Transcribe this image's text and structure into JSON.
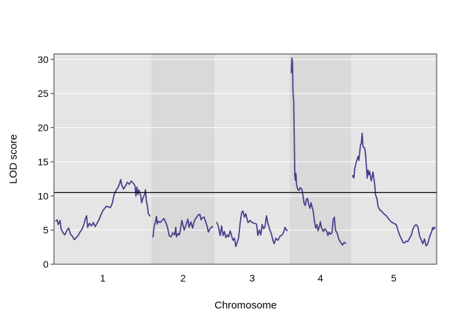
{
  "chart_data": {
    "type": "line",
    "xlabel": "Chromosome",
    "ylabel": "LOD score",
    "ylim": [
      0,
      30.8
    ],
    "yticks": [
      0,
      5,
      10,
      15,
      20,
      25,
      30
    ],
    "grid": true,
    "threshold": 10.5,
    "colors": {
      "line": "#483D8B",
      "panel_light": "#E5E5E5",
      "panel_dark": "#D9D9D9",
      "grid": "#FFFFFF",
      "threshold": "#000000"
    },
    "chromosomes": [
      {
        "label": "1",
        "series": [
          {
            "x": 0,
            "y": 6.3
          },
          {
            "x": 2,
            "y": 6.5
          },
          {
            "x": 3,
            "y": 5.8
          },
          {
            "x": 5,
            "y": 6.4
          },
          {
            "x": 6,
            "y": 5.2
          },
          {
            "x": 8,
            "y": 4.6
          },
          {
            "x": 10,
            "y": 4.3
          },
          {
            "x": 12,
            "y": 4.9
          },
          {
            "x": 14,
            "y": 5.3
          },
          {
            "x": 16,
            "y": 4.4
          },
          {
            "x": 18,
            "y": 4.1
          },
          {
            "x": 20,
            "y": 3.6
          },
          {
            "x": 22,
            "y": 3.9
          },
          {
            "x": 24,
            "y": 4.2
          },
          {
            "x": 26,
            "y": 4.7
          },
          {
            "x": 28,
            "y": 5.1
          },
          {
            "x": 30,
            "y": 5.8
          },
          {
            "x": 32,
            "y": 6.8
          },
          {
            "x": 33,
            "y": 7.1
          },
          {
            "x": 34,
            "y": 5.4
          },
          {
            "x": 36,
            "y": 6.0
          },
          {
            "x": 38,
            "y": 5.6
          },
          {
            "x": 40,
            "y": 6.1
          },
          {
            "x": 42,
            "y": 5.5
          },
          {
            "x": 44,
            "y": 6.0
          },
          {
            "x": 46,
            "y": 6.5
          },
          {
            "x": 48,
            "y": 7.2
          },
          {
            "x": 50,
            "y": 7.8
          },
          {
            "x": 52,
            "y": 8.2
          },
          {
            "x": 54,
            "y": 8.5
          },
          {
            "x": 56,
            "y": 8.4
          },
          {
            "x": 58,
            "y": 8.3
          },
          {
            "x": 60,
            "y": 8.9
          },
          {
            "x": 62,
            "y": 10.2
          },
          {
            "x": 64,
            "y": 10.8
          },
          {
            "x": 66,
            "y": 11.2
          },
          {
            "x": 68,
            "y": 11.9
          },
          {
            "x": 69,
            "y": 12.4
          },
          {
            "x": 70,
            "y": 11.6
          },
          {
            "x": 72,
            "y": 11.0
          },
          {
            "x": 74,
            "y": 11.5
          },
          {
            "x": 76,
            "y": 12.0
          },
          {
            "x": 78,
            "y": 11.7
          },
          {
            "x": 80,
            "y": 12.2
          },
          {
            "x": 82,
            "y": 11.9
          },
          {
            "x": 84,
            "y": 11.5
          },
          {
            "x": 85,
            "y": 10.0
          },
          {
            "x": 86,
            "y": 11.3
          },
          {
            "x": 87,
            "y": 10.2
          },
          {
            "x": 88,
            "y": 10.9
          },
          {
            "x": 90,
            "y": 10.1
          },
          {
            "x": 91,
            "y": 9.0
          },
          {
            "x": 92,
            "y": 9.5
          },
          {
            "x": 94,
            "y": 10.2
          },
          {
            "x": 95,
            "y": 10.9
          },
          {
            "x": 96,
            "y": 9.3
          },
          {
            "x": 97,
            "y": 8.6
          },
          {
            "x": 98,
            "y": 7.4
          },
          {
            "x": 100,
            "y": 7.0
          }
        ]
      },
      {
        "label": "2",
        "series": [
          {
            "x": 0,
            "y": 3.9
          },
          {
            "x": 2,
            "y": 5.5
          },
          {
            "x": 4,
            "y": 6.2
          },
          {
            "x": 6,
            "y": 7.0
          },
          {
            "x": 7,
            "y": 5.9
          },
          {
            "x": 9,
            "y": 6.3
          },
          {
            "x": 12,
            "y": 6.1
          },
          {
            "x": 15,
            "y": 6.4
          },
          {
            "x": 18,
            "y": 6.7
          },
          {
            "x": 21,
            "y": 6.2
          },
          {
            "x": 24,
            "y": 5.5
          },
          {
            "x": 27,
            "y": 4.2
          },
          {
            "x": 30,
            "y": 4.0
          },
          {
            "x": 33,
            "y": 4.6
          },
          {
            "x": 36,
            "y": 4.3
          },
          {
            "x": 38,
            "y": 5.4
          },
          {
            "x": 39,
            "y": 4.0
          },
          {
            "x": 42,
            "y": 4.5
          },
          {
            "x": 44,
            "y": 4.3
          },
          {
            "x": 46,
            "y": 5.2
          },
          {
            "x": 48,
            "y": 6.4
          },
          {
            "x": 50,
            "y": 5.7
          },
          {
            "x": 52,
            "y": 5.0
          },
          {
            "x": 55,
            "y": 5.8
          },
          {
            "x": 58,
            "y": 6.6
          },
          {
            "x": 60,
            "y": 5.4
          },
          {
            "x": 63,
            "y": 6.2
          },
          {
            "x": 66,
            "y": 5.3
          },
          {
            "x": 69,
            "y": 6.4
          },
          {
            "x": 72,
            "y": 6.8
          },
          {
            "x": 75,
            "y": 7.2
          },
          {
            "x": 78,
            "y": 7.3
          },
          {
            "x": 80,
            "y": 6.5
          },
          {
            "x": 82,
            "y": 6.8
          },
          {
            "x": 85,
            "y": 6.9
          },
          {
            "x": 88,
            "y": 6.1
          },
          {
            "x": 90,
            "y": 5.6
          },
          {
            "x": 92,
            "y": 4.7
          },
          {
            "x": 95,
            "y": 5.2
          },
          {
            "x": 98,
            "y": 5.5
          },
          {
            "x": 100,
            "y": 5.4
          }
        ]
      },
      {
        "label": "3",
        "series": [
          {
            "x": 0,
            "y": 6.2
          },
          {
            "x": 2,
            "y": 5.7
          },
          {
            "x": 4,
            "y": 4.7
          },
          {
            "x": 5,
            "y": 4.2
          },
          {
            "x": 7,
            "y": 5.6
          },
          {
            "x": 9,
            "y": 4.2
          },
          {
            "x": 11,
            "y": 4.8
          },
          {
            "x": 13,
            "y": 3.9
          },
          {
            "x": 15,
            "y": 4.3
          },
          {
            "x": 17,
            "y": 4.0
          },
          {
            "x": 19,
            "y": 4.9
          },
          {
            "x": 21,
            "y": 4.2
          },
          {
            "x": 23,
            "y": 3.5
          },
          {
            "x": 25,
            "y": 3.8
          },
          {
            "x": 27,
            "y": 2.6
          },
          {
            "x": 29,
            "y": 3.2
          },
          {
            "x": 31,
            "y": 3.9
          },
          {
            "x": 33,
            "y": 6.0
          },
          {
            "x": 35,
            "y": 7.5
          },
          {
            "x": 37,
            "y": 7.8
          },
          {
            "x": 39,
            "y": 6.9
          },
          {
            "x": 41,
            "y": 7.4
          },
          {
            "x": 44,
            "y": 6.1
          },
          {
            "x": 47,
            "y": 6.4
          },
          {
            "x": 50,
            "y": 6.1
          },
          {
            "x": 53,
            "y": 6.0
          },
          {
            "x": 56,
            "y": 5.9
          },
          {
            "x": 58,
            "y": 4.2
          },
          {
            "x": 60,
            "y": 5.0
          },
          {
            "x": 62,
            "y": 4.3
          },
          {
            "x": 64,
            "y": 5.8
          },
          {
            "x": 66,
            "y": 5.2
          },
          {
            "x": 68,
            "y": 5.5
          },
          {
            "x": 70,
            "y": 7.1
          },
          {
            "x": 72,
            "y": 6.0
          },
          {
            "x": 75,
            "y": 4.9
          },
          {
            "x": 77,
            "y": 4.4
          },
          {
            "x": 79,
            "y": 3.5
          },
          {
            "x": 81,
            "y": 3.0
          },
          {
            "x": 83,
            "y": 3.8
          },
          {
            "x": 86,
            "y": 3.5
          },
          {
            "x": 89,
            "y": 4.1
          },
          {
            "x": 92,
            "y": 4.3
          },
          {
            "x": 94,
            "y": 4.7
          },
          {
            "x": 96,
            "y": 5.4
          },
          {
            "x": 98,
            "y": 5.0
          },
          {
            "x": 100,
            "y": 4.9
          }
        ]
      },
      {
        "label": "4",
        "series": [
          {
            "x": 0,
            "y": 28.0
          },
          {
            "x": 1,
            "y": 30.2
          },
          {
            "x": 2,
            "y": 29.5
          },
          {
            "x": 3,
            "y": 25.0
          },
          {
            "x": 4,
            "y": 24.0
          },
          {
            "x": 5,
            "y": 19.0
          },
          {
            "x": 6,
            "y": 13.0
          },
          {
            "x": 7,
            "y": 12.3
          },
          {
            "x": 8,
            "y": 13.3
          },
          {
            "x": 9,
            "y": 11.6
          },
          {
            "x": 11,
            "y": 11.0
          },
          {
            "x": 13,
            "y": 10.8
          },
          {
            "x": 15,
            "y": 11.2
          },
          {
            "x": 18,
            "y": 11.0
          },
          {
            "x": 20,
            "y": 10.1
          },
          {
            "x": 22,
            "y": 8.9
          },
          {
            "x": 24,
            "y": 8.6
          },
          {
            "x": 26,
            "y": 9.5
          },
          {
            "x": 28,
            "y": 9.6
          },
          {
            "x": 30,
            "y": 8.8
          },
          {
            "x": 32,
            "y": 8.2
          },
          {
            "x": 34,
            "y": 9.0
          },
          {
            "x": 36,
            "y": 8.3
          },
          {
            "x": 38,
            "y": 7.6
          },
          {
            "x": 40,
            "y": 6.2
          },
          {
            "x": 42,
            "y": 5.3
          },
          {
            "x": 44,
            "y": 5.8
          },
          {
            "x": 46,
            "y": 4.9
          },
          {
            "x": 48,
            "y": 5.4
          },
          {
            "x": 50,
            "y": 6.2
          },
          {
            "x": 52,
            "y": 5.3
          },
          {
            "x": 55,
            "y": 4.8
          },
          {
            "x": 58,
            "y": 5.2
          },
          {
            "x": 61,
            "y": 4.8
          },
          {
            "x": 63,
            "y": 4.2
          },
          {
            "x": 65,
            "y": 4.7
          },
          {
            "x": 67,
            "y": 4.4
          },
          {
            "x": 70,
            "y": 4.6
          },
          {
            "x": 72,
            "y": 6.5
          },
          {
            "x": 74,
            "y": 6.9
          },
          {
            "x": 76,
            "y": 5.0
          },
          {
            "x": 79,
            "y": 4.5
          },
          {
            "x": 82,
            "y": 3.6
          },
          {
            "x": 85,
            "y": 3.2
          },
          {
            "x": 88,
            "y": 2.8
          },
          {
            "x": 91,
            "y": 3.2
          },
          {
            "x": 94,
            "y": 3.0
          }
        ]
      },
      {
        "label": "5",
        "series": [
          {
            "x": 0,
            "y": 12.8
          },
          {
            "x": 1,
            "y": 13.0
          },
          {
            "x": 2,
            "y": 12.6
          },
          {
            "x": 3,
            "y": 14.0
          },
          {
            "x": 5,
            "y": 15.0
          },
          {
            "x": 7,
            "y": 15.8
          },
          {
            "x": 8,
            "y": 15.2
          },
          {
            "x": 10,
            "y": 17.5
          },
          {
            "x": 11,
            "y": 17.7
          },
          {
            "x": 12,
            "y": 19.2
          },
          {
            "x": 13,
            "y": 17.2
          },
          {
            "x": 15,
            "y": 17.0
          },
          {
            "x": 16,
            "y": 16.2
          },
          {
            "x": 17,
            "y": 14.5
          },
          {
            "x": 18,
            "y": 12.6
          },
          {
            "x": 19,
            "y": 13.8
          },
          {
            "x": 20,
            "y": 13.1
          },
          {
            "x": 21,
            "y": 13.6
          },
          {
            "x": 22,
            "y": 12.8
          },
          {
            "x": 23,
            "y": 12.2
          },
          {
            "x": 25,
            "y": 13.5
          },
          {
            "x": 26,
            "y": 12.6
          },
          {
            "x": 27,
            "y": 11.8
          },
          {
            "x": 28,
            "y": 10.2
          },
          {
            "x": 30,
            "y": 9.5
          },
          {
            "x": 31,
            "y": 8.5
          },
          {
            "x": 33,
            "y": 8.0
          },
          {
            "x": 35,
            "y": 7.8
          },
          {
            "x": 38,
            "y": 7.4
          },
          {
            "x": 41,
            "y": 7.1
          },
          {
            "x": 44,
            "y": 6.6
          },
          {
            "x": 47,
            "y": 6.2
          },
          {
            "x": 50,
            "y": 6.0
          },
          {
            "x": 53,
            "y": 5.8
          },
          {
            "x": 55,
            "y": 5.0
          },
          {
            "x": 57,
            "y": 4.3
          },
          {
            "x": 59,
            "y": 3.8
          },
          {
            "x": 61,
            "y": 3.2
          },
          {
            "x": 63,
            "y": 3.1
          },
          {
            "x": 65,
            "y": 3.4
          },
          {
            "x": 67,
            "y": 3.3
          },
          {
            "x": 69,
            "y": 3.8
          },
          {
            "x": 71,
            "y": 4.2
          },
          {
            "x": 73,
            "y": 5.1
          },
          {
            "x": 75,
            "y": 5.6
          },
          {
            "x": 77,
            "y": 5.8
          },
          {
            "x": 79,
            "y": 5.5
          },
          {
            "x": 81,
            "y": 4.2
          },
          {
            "x": 83,
            "y": 3.6
          },
          {
            "x": 85,
            "y": 3.0
          },
          {
            "x": 87,
            "y": 3.7
          },
          {
            "x": 89,
            "y": 2.7
          },
          {
            "x": 91,
            "y": 3.0
          },
          {
            "x": 93,
            "y": 3.9
          },
          {
            "x": 95,
            "y": 4.6
          },
          {
            "x": 96,
            "y": 4.9
          },
          {
            "x": 97,
            "y": 5.4
          },
          {
            "x": 98,
            "y": 5.1
          },
          {
            "x": 100,
            "y": 5.5
          }
        ]
      }
    ]
  }
}
